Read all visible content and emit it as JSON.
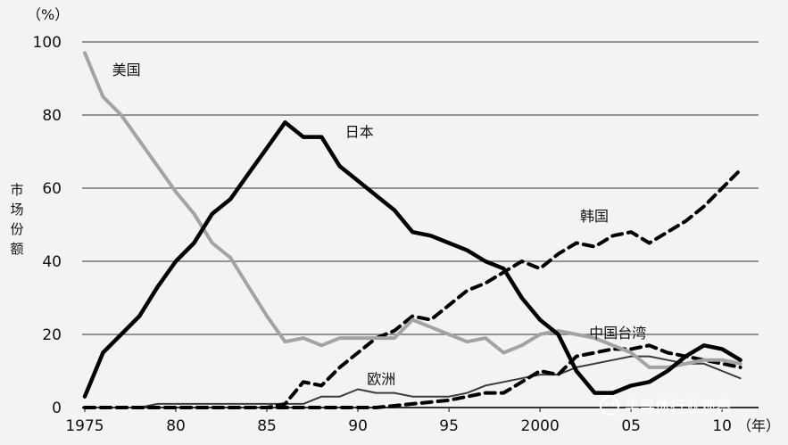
{
  "chart_data": {
    "type": "line",
    "title": "",
    "xlabel": "",
    "ylabel": "市场份额",
    "y_unit": "（%）",
    "x_unit": "（年）",
    "ylim": [
      0,
      100
    ],
    "xlim": [
      1975,
      2012
    ],
    "y_ticks": [
      0,
      20,
      40,
      60,
      80,
      100
    ],
    "x_ticks": [
      {
        "value": 1975,
        "label": "1975"
      },
      {
        "value": 1980,
        "label": "80"
      },
      {
        "value": 1985,
        "label": "85"
      },
      {
        "value": 1990,
        "label": "90"
      },
      {
        "value": 1995,
        "label": "95"
      },
      {
        "value": 2000,
        "label": "2000"
      },
      {
        "value": 2005,
        "label": "05"
      },
      {
        "value": 2010,
        "label": "10"
      }
    ],
    "grid": "horizontal",
    "series": [
      {
        "name": "美国",
        "color": "#a3a3a3",
        "style": "solid",
        "points": [
          [
            1975,
            97
          ],
          [
            1976,
            85
          ],
          [
            1977,
            80
          ],
          [
            1978,
            73
          ],
          [
            1979,
            66
          ],
          [
            1980,
            59
          ],
          [
            1981,
            53
          ],
          [
            1982,
            45
          ],
          [
            1983,
            41
          ],
          [
            1984,
            33
          ],
          [
            1985,
            25
          ],
          [
            1986,
            18
          ],
          [
            1987,
            19
          ],
          [
            1988,
            17
          ],
          [
            1989,
            19
          ],
          [
            1990,
            19
          ],
          [
            1991,
            19
          ],
          [
            1992,
            19
          ],
          [
            1993,
            24
          ],
          [
            1994,
            22
          ],
          [
            1995,
            20
          ],
          [
            1996,
            18
          ],
          [
            1997,
            19
          ],
          [
            1998,
            15
          ],
          [
            1999,
            17
          ],
          [
            2000,
            20
          ],
          [
            2001,
            21
          ],
          [
            2002,
            20
          ],
          [
            2003,
            19
          ],
          [
            2004,
            17
          ],
          [
            2005,
            15
          ],
          [
            2006,
            11
          ],
          [
            2007,
            11
          ],
          [
            2008,
            12
          ],
          [
            2009,
            13
          ],
          [
            2010,
            13
          ],
          [
            2011,
            12
          ]
        ]
      },
      {
        "name": "日本",
        "color": "#000000",
        "style": "solid",
        "points": [
          [
            1975,
            3
          ],
          [
            1976,
            15
          ],
          [
            1977,
            20
          ],
          [
            1978,
            25
          ],
          [
            1979,
            33
          ],
          [
            1980,
            40
          ],
          [
            1981,
            45
          ],
          [
            1982,
            53
          ],
          [
            1983,
            57
          ],
          [
            1984,
            64
          ],
          [
            1985,
            71
          ],
          [
            1986,
            78
          ],
          [
            1987,
            74
          ],
          [
            1988,
            74
          ],
          [
            1989,
            66
          ],
          [
            1990,
            62
          ],
          [
            1991,
            58
          ],
          [
            1992,
            54
          ],
          [
            1993,
            48
          ],
          [
            1994,
            47
          ],
          [
            1995,
            45
          ],
          [
            1996,
            43
          ],
          [
            1997,
            40
          ],
          [
            1998,
            38
          ],
          [
            1999,
            30
          ],
          [
            2000,
            24
          ],
          [
            2001,
            20
          ],
          [
            2002,
            10
          ],
          [
            2003,
            4
          ],
          [
            2004,
            4
          ],
          [
            2005,
            6
          ],
          [
            2006,
            7
          ],
          [
            2007,
            10
          ],
          [
            2008,
            14
          ],
          [
            2009,
            17
          ],
          [
            2010,
            16
          ],
          [
            2011,
            13
          ]
        ]
      },
      {
        "name": "韩国",
        "color": "#000000",
        "style": "dashed",
        "points": [
          [
            1975,
            0
          ],
          [
            1985,
            0
          ],
          [
            1986,
            1
          ],
          [
            1987,
            7
          ],
          [
            1988,
            6
          ],
          [
            1989,
            11
          ],
          [
            1990,
            15
          ],
          [
            1991,
            19
          ],
          [
            1992,
            21
          ],
          [
            1993,
            25
          ],
          [
            1994,
            24
          ],
          [
            1995,
            28
          ],
          [
            1996,
            32
          ],
          [
            1997,
            34
          ],
          [
            1998,
            37
          ],
          [
            1999,
            40
          ],
          [
            2000,
            38
          ],
          [
            2001,
            42
          ],
          [
            2002,
            45
          ],
          [
            2003,
            44
          ],
          [
            2004,
            47
          ],
          [
            2005,
            48
          ],
          [
            2006,
            45
          ],
          [
            2007,
            48
          ],
          [
            2008,
            51
          ],
          [
            2009,
            55
          ],
          [
            2010,
            60
          ],
          [
            2011,
            65
          ]
        ]
      },
      {
        "name": "中国台湾",
        "color": "#000000",
        "style": "dashed",
        "points": [
          [
            1975,
            0
          ],
          [
            1991,
            0
          ],
          [
            1993,
            1
          ],
          [
            1995,
            2
          ],
          [
            1996,
            3
          ],
          [
            1997,
            4
          ],
          [
            1998,
            4
          ],
          [
            1999,
            7
          ],
          [
            2000,
            10
          ],
          [
            2001,
            9
          ],
          [
            2002,
            14
          ],
          [
            2003,
            15
          ],
          [
            2004,
            16
          ],
          [
            2005,
            16
          ],
          [
            2006,
            17
          ],
          [
            2007,
            15
          ],
          [
            2008,
            14
          ],
          [
            2009,
            13
          ],
          [
            2010,
            12
          ],
          [
            2011,
            11
          ]
        ]
      },
      {
        "name": "欧洲",
        "color": "#3b3b3b",
        "style": "thin",
        "points": [
          [
            1975,
            0
          ],
          [
            1978,
            0
          ],
          [
            1979,
            1
          ],
          [
            1980,
            1
          ],
          [
            1987,
            1
          ],
          [
            1988,
            3
          ],
          [
            1989,
            3
          ],
          [
            1990,
            5
          ],
          [
            1991,
            4
          ],
          [
            1992,
            4
          ],
          [
            1993,
            3
          ],
          [
            1994,
            3
          ],
          [
            1995,
            3
          ],
          [
            1996,
            4
          ],
          [
            1997,
            6
          ],
          [
            1998,
            7
          ],
          [
            1999,
            8
          ],
          [
            2000,
            9
          ],
          [
            2001,
            9
          ],
          [
            2002,
            11
          ],
          [
            2003,
            12
          ],
          [
            2004,
            13
          ],
          [
            2005,
            14
          ],
          [
            2006,
            14
          ],
          [
            2007,
            13
          ],
          [
            2008,
            12
          ],
          [
            2009,
            12
          ],
          [
            2010,
            10
          ],
          [
            2011,
            8
          ]
        ]
      }
    ],
    "labels": [
      {
        "text": "美国",
        "x": 1976.5,
        "y": 91
      },
      {
        "text": "日本",
        "x": 1989.3,
        "y": 74
      },
      {
        "text": "韩国",
        "x": 2002.2,
        "y": 51
      },
      {
        "text": "中国台湾",
        "x": 2002.7,
        "y": 19
      },
      {
        "text": "欧洲",
        "x": 1990.5,
        "y": 6.5
      }
    ]
  },
  "watermark": {
    "text": "半导体行业观察",
    "icon": "wechat-icon"
  }
}
